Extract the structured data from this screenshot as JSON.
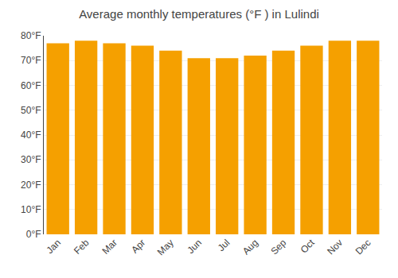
{
  "chart_data": {
    "type": "bar",
    "title": "Average monthly temperatures (°F ) in Lulindi",
    "categories": [
      "Jan",
      "Feb",
      "Mar",
      "Apr",
      "May",
      "Jun",
      "Jul",
      "Aug",
      "Sep",
      "Oct",
      "Nov",
      "Dec"
    ],
    "values": [
      77,
      78,
      77,
      76,
      74,
      71,
      71,
      72,
      74,
      76,
      78,
      78
    ],
    "color": "#F5A000",
    "ylim": [
      0,
      80
    ],
    "yticks": [
      {
        "value": 0,
        "label": "0°F"
      },
      {
        "value": 10,
        "label": "10°F"
      },
      {
        "value": 20,
        "label": "20°F"
      },
      {
        "value": 30,
        "label": "30°F"
      },
      {
        "value": 40,
        "label": "40°F"
      },
      {
        "value": 50,
        "label": "50°F"
      },
      {
        "value": 60,
        "label": "60°F"
      },
      {
        "value": 70,
        "label": "70°F"
      },
      {
        "value": 80,
        "label": "80°F"
      }
    ],
    "grid": true
  }
}
